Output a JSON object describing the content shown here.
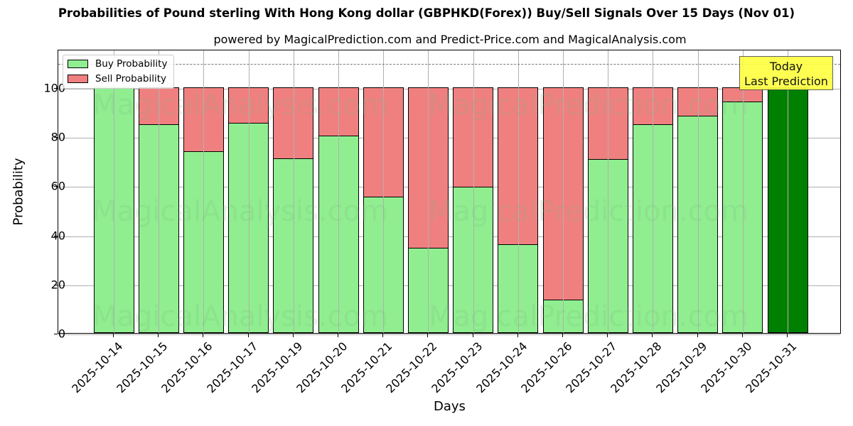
{
  "header": {
    "title": "Probabilities of Pound sterling With Hong Kong dollar (GBPHKD(Forex)) Buy/Sell Signals Over 15 Days (Nov 01)",
    "subtitle": "powered by MagicalPrediction.com and Predict-Price.com and MagicalAnalysis.com"
  },
  "legend": {
    "buy_label": "Buy Probability",
    "sell_label": "Sell Probability"
  },
  "annotation": {
    "line1": "Today",
    "line2": "Last Prediction"
  },
  "watermarks": {
    "left": "MagicalAnalysis.com",
    "right": "MagicalPrediction.com"
  },
  "colors": {
    "buy": "#90ee90",
    "sell": "#f08080",
    "today": "#008000",
    "annotation_bg": "#ffff44"
  },
  "chart_data": {
    "type": "bar",
    "stacked": true,
    "title": "Probabilities of Pound sterling With Hong Kong dollar (GBPHKD(Forex)) Buy/Sell Signals Over 15 Days (Nov 01)",
    "subtitle": "powered by MagicalPrediction.com and Predict-Price.com and MagicalAnalysis.com",
    "xlabel": "Days",
    "ylabel": "Probability",
    "ylim": [
      0,
      115
    ],
    "yticks": [
      0,
      20,
      40,
      60,
      80,
      100
    ],
    "grid": true,
    "legend_position": "upper left",
    "reference_line": {
      "y": 110,
      "style": "dashed"
    },
    "categories": [
      "2025-10-14",
      "2025-10-15",
      "2025-10-16",
      "2025-10-17",
      "2025-10-19",
      "2025-10-20",
      "2025-10-21",
      "2025-10-22",
      "2025-10-23",
      "2025-10-24",
      "2025-10-26",
      "2025-10-27",
      "2025-10-28",
      "2025-10-29",
      "2025-10-30",
      "2025-10-31"
    ],
    "series": [
      {
        "name": "Buy Probability",
        "values": [
          100,
          85.3,
          74.3,
          85.8,
          71.4,
          80.6,
          55.8,
          35.0,
          59.8,
          36.4,
          13.9,
          71.1,
          85.3,
          88.7,
          94.6,
          100
        ]
      },
      {
        "name": "Sell Probability",
        "values": [
          0,
          14.7,
          25.7,
          14.2,
          28.6,
          19.4,
          44.2,
          65.0,
          40.2,
          63.6,
          86.1,
          28.9,
          14.7,
          11.3,
          5.4,
          0
        ]
      }
    ],
    "highlight": {
      "category": "2025-10-31",
      "label": "Today Last Prediction",
      "color": "#008000"
    }
  }
}
